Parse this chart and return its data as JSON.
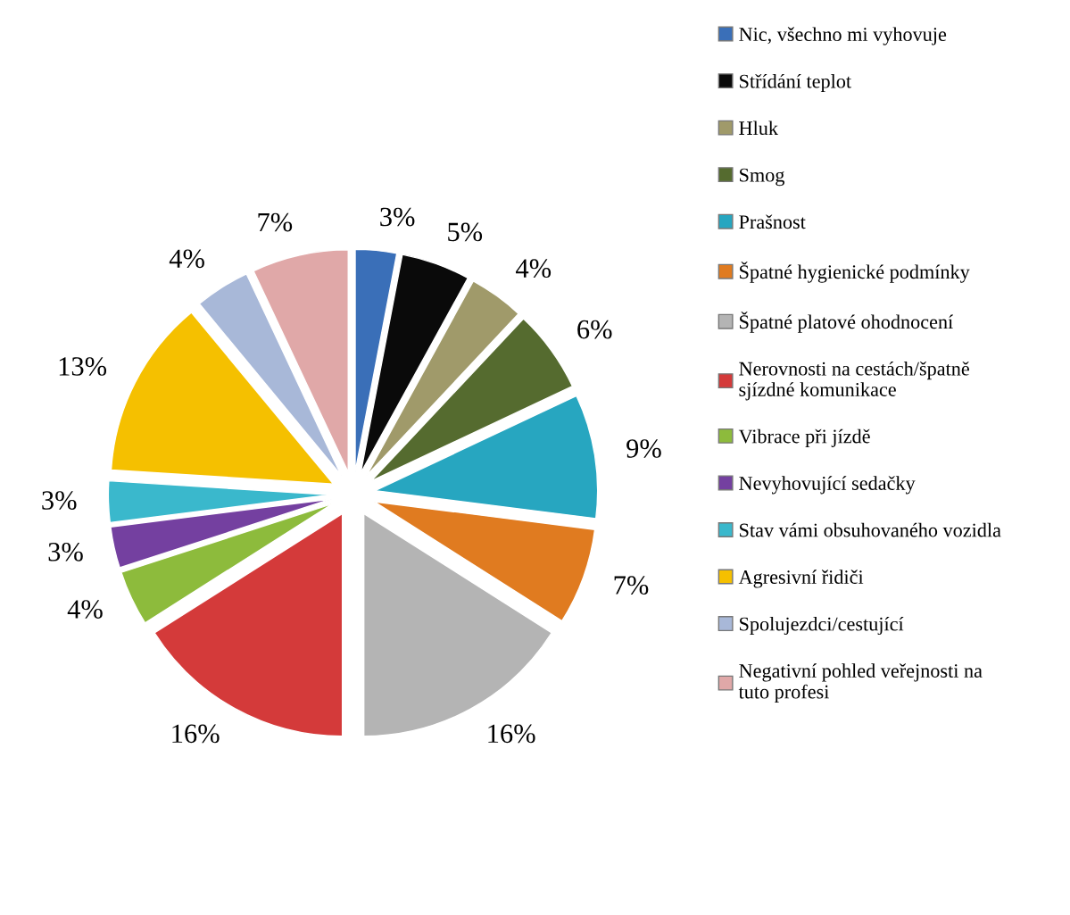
{
  "chart_data": {
    "type": "pie",
    "legend": "right",
    "categories": [
      "Nic, všechno mi vyhovuje",
      "Střídání teplot",
      "Hluk",
      "Smog",
      "Prašnost",
      "Špatné hygienické podmínky",
      "Špatné platové ohodnocení",
      "Nerovnosti na cestách/špatně sjízdné komunikace",
      "Vibrace při jízdě",
      "Nevyhovující sedačky",
      "Stav vámi obsuhovaného vozidla",
      "Agresivní řidiči",
      "Spolujezdci/cestující",
      "Negativní pohled veřejnosti na tuto profesi"
    ],
    "values": [
      3,
      5,
      4,
      6,
      9,
      7,
      16,
      16,
      4,
      3,
      3,
      13,
      4,
      7
    ],
    "value_labels": [
      "3%",
      "5%",
      "4%",
      "6%",
      "9%",
      "7%",
      "16%",
      "16%",
      "4%",
      "3%",
      "3%",
      "13%",
      "4%",
      "7%"
    ],
    "colors": [
      "#3a6fb8",
      "#0a0a0a",
      "#a09a6a",
      "#556b2f",
      "#27a6c0",
      "#e07b20",
      "#b4b4b4",
      "#d43a3a",
      "#8dbb3c",
      "#7440a0",
      "#3ab8cc",
      "#f5c000",
      "#a8b8d8",
      "#e0a8a8"
    ]
  }
}
